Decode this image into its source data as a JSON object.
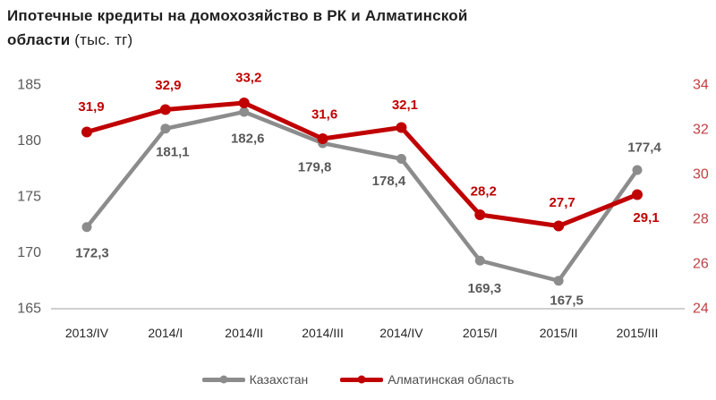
{
  "title": {
    "line1": "Ипотечные кредиты на домохозяйство в РК и Алматинской",
    "line2_bold": "области",
    "unit": "(тыс. тг)"
  },
  "chart_data": {
    "type": "line",
    "title": "Ипотечные кредиты на домохозяйство в РК и Алматинской области (тыс. тг)",
    "categories": [
      "2013/IV",
      "2014/I",
      "2014/II",
      "2014/III",
      "2014/IV",
      "2015/I",
      "2015/II",
      "2015/III"
    ],
    "series": [
      {
        "name": "Казахстан",
        "axis": "left",
        "color": "#8C8C8C",
        "label_color": "#595959",
        "values": [
          172.3,
          181.1,
          182.6,
          179.8,
          178.4,
          169.3,
          167.5,
          177.4
        ],
        "label_offsets": [
          [
            6,
            29
          ],
          [
            8,
            26
          ],
          [
            4,
            30
          ],
          [
            -9,
            27
          ],
          [
            -14,
            25
          ],
          [
            5,
            31
          ],
          [
            9,
            22
          ],
          [
            8,
            -25
          ]
        ]
      },
      {
        "name": "Алматинская область",
        "axis": "right",
        "color": "#C00000",
        "label_color": "#C00000",
        "values": [
          31.9,
          32.9,
          33.2,
          31.6,
          32.1,
          28.2,
          27.7,
          29.1
        ],
        "label_offsets": [
          [
            5,
            -28
          ],
          [
            3,
            -27
          ],
          [
            5,
            -28
          ],
          [
            2,
            -27
          ],
          [
            4,
            -25
          ],
          [
            4,
            -26
          ],
          [
            4,
            -26
          ],
          [
            10,
            26
          ]
        ]
      }
    ],
    "left_axis": {
      "min": 165,
      "max": 185,
      "ticks": [
        185,
        180,
        175,
        170,
        165
      ],
      "color": "#595959"
    },
    "right_axis": {
      "min": 24,
      "max": 34,
      "ticks": [
        34,
        32,
        30,
        28,
        26,
        24
      ],
      "color": "#BE4142"
    },
    "x_axis": {
      "label_color": "#262626",
      "line_color": "#BFBFBF"
    },
    "grid": false,
    "legend_position": "bottom",
    "decimal_separator": ","
  }
}
